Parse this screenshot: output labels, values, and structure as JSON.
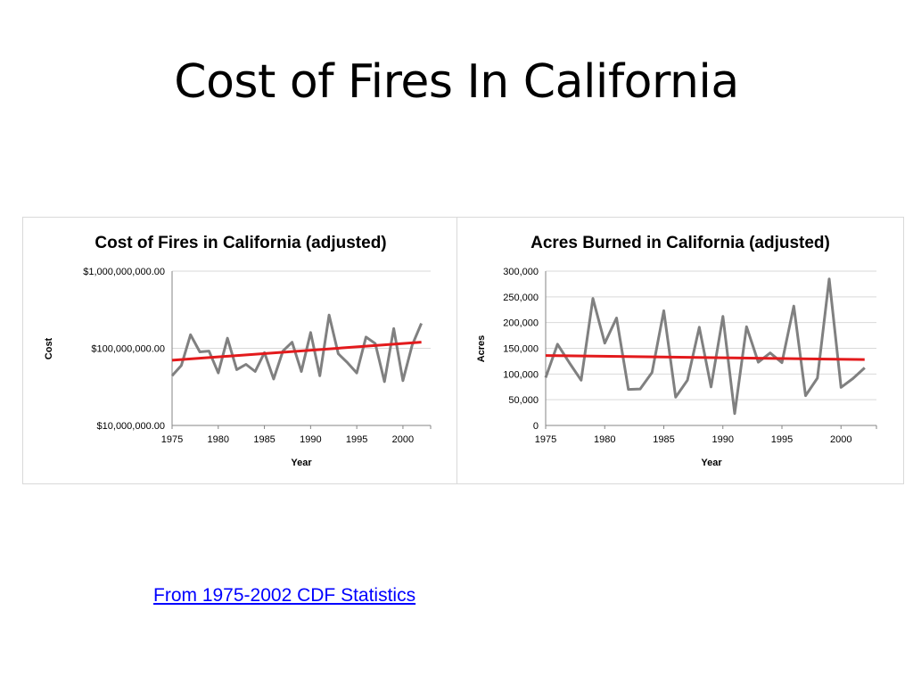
{
  "slide": {
    "title": "Cost of Fires In California",
    "source_link": "From 1975-2002 CDF Statistics"
  },
  "colors": {
    "data_line": "#808080",
    "trend_line": "#e31a1c",
    "gridline": "#d9d9d9",
    "link": "#0000ff"
  },
  "chart_data": [
    {
      "type": "line",
      "title": "Cost of Fires in California (adjusted)",
      "xlabel": "Year",
      "ylabel": "Cost",
      "yscale": "log",
      "ylim": [
        10000000,
        1000000000
      ],
      "yticks": [
        10000000,
        100000000,
        1000000000
      ],
      "ytick_labels": [
        "$10,000,000.00",
        "$100,000,000.00",
        "$1,000,000,000.00"
      ],
      "xlim": [
        1975,
        2003
      ],
      "xticks": [
        1975,
        1980,
        1985,
        1990,
        1995,
        2000
      ],
      "xtick_labels": [
        "1975",
        "1980",
        "1985",
        "1990",
        "1995",
        "2000"
      ],
      "grid": "horizontal",
      "legend": "none",
      "series": [
        {
          "x": [
            1975,
            1976,
            1977,
            1978,
            1979,
            1980,
            1981,
            1982,
            1983,
            1984,
            1985,
            1986,
            1987,
            1988,
            1989,
            1990,
            1991,
            1992,
            1993,
            1994,
            1995,
            1996,
            1997,
            1998,
            1999,
            2000,
            2001,
            2002
          ],
          "y": [
            44000000,
            60000000,
            150000000,
            90000000,
            92000000,
            48000000,
            135000000,
            53000000,
            62000000,
            50000000,
            88000000,
            40000000,
            92000000,
            120000000,
            50000000,
            160000000,
            44000000,
            270000000,
            85000000,
            65000000,
            48000000,
            140000000,
            115000000,
            37000000,
            180000000,
            38000000,
            110000000,
            210000000
          ]
        }
      ],
      "trendline": {
        "type": "linear",
        "x": [
          1975,
          2002
        ],
        "y": [
          70000000,
          120000000
        ]
      }
    },
    {
      "type": "line",
      "title": "Acres Burned in California (adjusted)",
      "xlabel": "Year",
      "ylabel": "Acres",
      "ylim": [
        0,
        300000
      ],
      "yticks": [
        0,
        50000,
        100000,
        150000,
        200000,
        250000,
        300000
      ],
      "ytick_labels": [
        "0",
        "50,000",
        "100,000",
        "150,000",
        "200,000",
        "250,000",
        "300,000"
      ],
      "xlim": [
        1975,
        2003
      ],
      "xticks": [
        1975,
        1980,
        1985,
        1990,
        1995,
        2000
      ],
      "xtick_labels": [
        "1975",
        "1980",
        "1985",
        "1990",
        "1995",
        "2000"
      ],
      "grid": "horizontal",
      "legend": "none",
      "series": [
        {
          "x": [
            1975,
            1976,
            1977,
            1978,
            1979,
            1980,
            1981,
            1982,
            1983,
            1984,
            1985,
            1986,
            1987,
            1988,
            1989,
            1990,
            1991,
            1992,
            1993,
            1994,
            1995,
            1996,
            1997,
            1998,
            1999,
            2000,
            2001,
            2002
          ],
          "y": [
            93000,
            158000,
            122000,
            88000,
            247000,
            160000,
            209000,
            70000,
            71000,
            103000,
            223000,
            55000,
            88000,
            191000,
            75000,
            212000,
            23000,
            192000,
            123000,
            141000,
            122000,
            232000,
            58000,
            92000,
            285000,
            74000,
            91000,
            112000
          ]
        }
      ],
      "trendline": {
        "type": "linear",
        "x": [
          1975,
          2002
        ],
        "y": [
          136000,
          128000
        ]
      }
    }
  ]
}
